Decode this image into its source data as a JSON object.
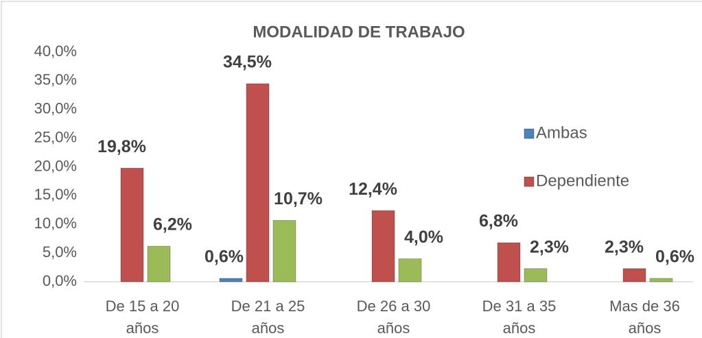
{
  "chart_data": {
    "type": "bar",
    "title": "MODALIDAD DE TRABAJO",
    "categories": [
      "De 15 a 20 años",
      "De 21 a 25 años",
      "De 26 a 30 años",
      "De 31 a 35 años",
      "Mas de 36 años"
    ],
    "series": [
      {
        "name": "Ambas",
        "color": "#4f81bd",
        "values": [
          null,
          0.6,
          null,
          null,
          null
        ],
        "value_labels": [
          null,
          "0,6%",
          null,
          null,
          null
        ]
      },
      {
        "name": "Dependiente",
        "color": "#c0504d",
        "values": [
          19.8,
          34.5,
          12.4,
          6.8,
          2.3
        ],
        "value_labels": [
          "19,8%",
          "34,5%",
          "12,4%",
          "6,8%",
          "2,3%"
        ]
      },
      {
        "color": "#9bbb59",
        "values": [
          6.2,
          10.7,
          4.0,
          2.3,
          0.6
        ],
        "value_labels": [
          "6,2%",
          "10,7%",
          "4,0%",
          "2,3%",
          "0,6%"
        ]
      }
    ],
    "ylim": [
      0,
      40
    ],
    "yticks": [
      {
        "value": 0,
        "label": "0,0%"
      },
      {
        "value": 5,
        "label": "5,0%"
      },
      {
        "value": 10,
        "label": "10,0%"
      },
      {
        "value": 15,
        "label": "15,0%"
      },
      {
        "value": 20,
        "label": "20,0%"
      },
      {
        "value": 25,
        "label": "25,0%"
      },
      {
        "value": 30,
        "label": "30,0%"
      },
      {
        "value": 35,
        "label": "35,0%"
      },
      {
        "value": 40,
        "label": "40,0%"
      }
    ],
    "legend": "right"
  }
}
